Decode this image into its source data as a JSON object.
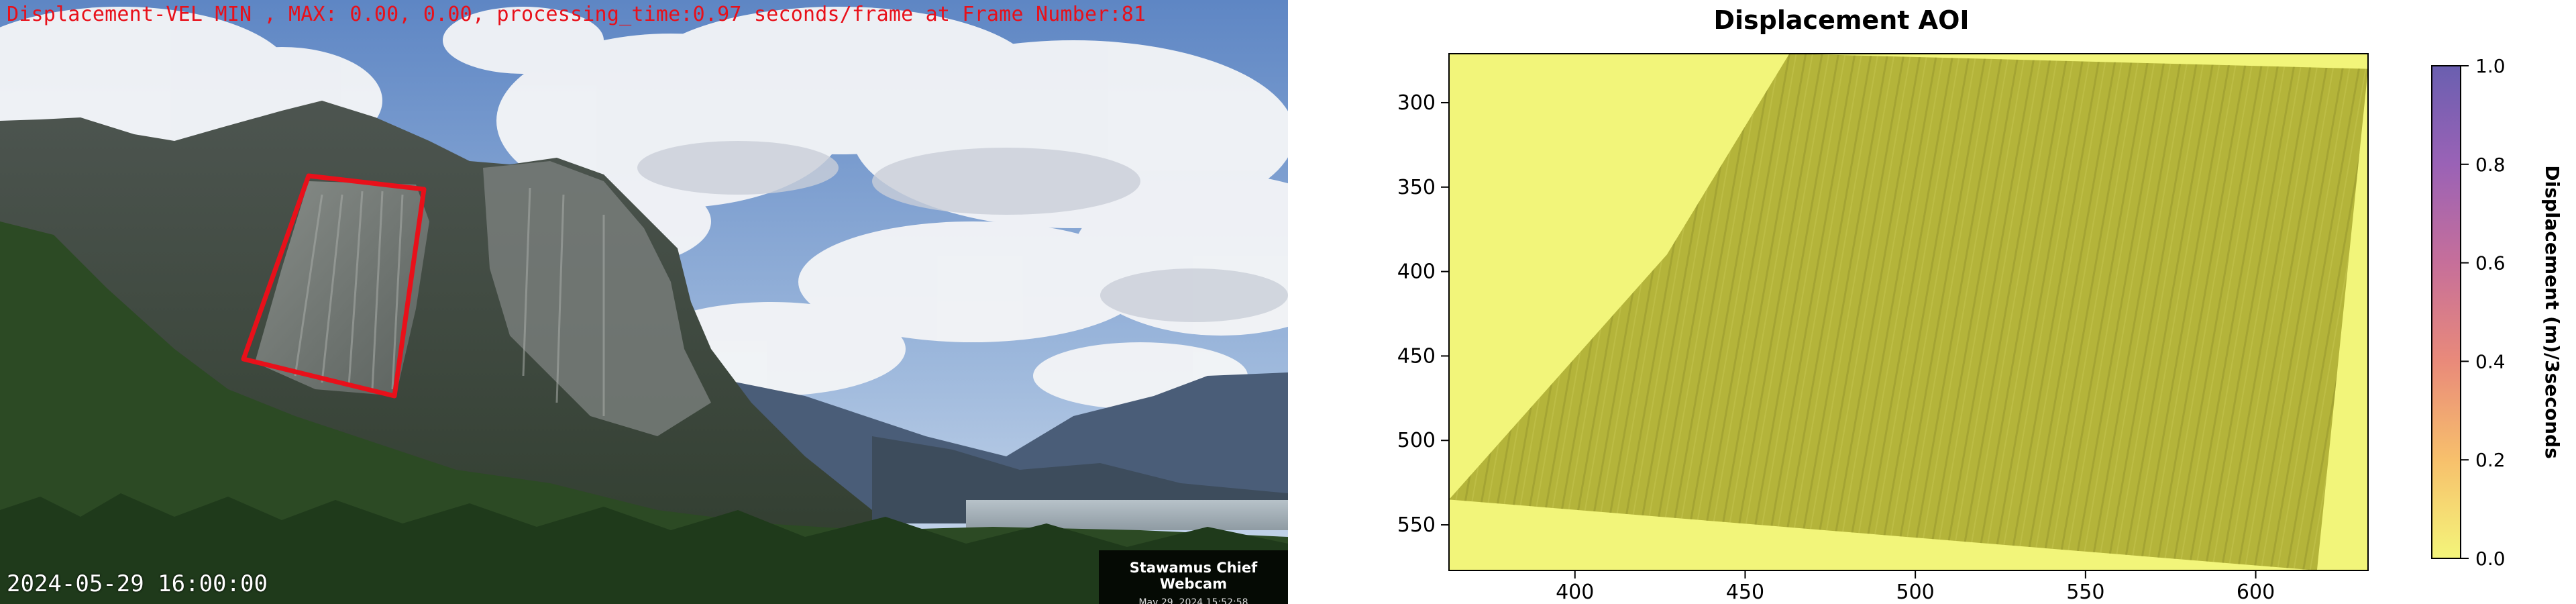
{
  "webcam": {
    "header_text": "Displacement-VEL MIN , MAX: 0.00, 0.00, processing_time:0.97 seconds/frame at Frame Number:81",
    "timestamp": "2024-05-29 16:00:00",
    "label_name": "Stawamus Chief Webcam",
    "label_date": "May 29, 2024 15:52:58",
    "aoi_color": "#e8101a"
  },
  "chart_data": {
    "type": "heatmap",
    "title": "Displacement AOI",
    "xlabel": "",
    "ylabel": "",
    "xlim": [
      363,
      633
    ],
    "ylim": [
      577,
      271
    ],
    "x_ticks": [
      400,
      450,
      500,
      550,
      600
    ],
    "y_ticks": [
      300,
      350,
      400,
      450,
      500,
      550
    ],
    "aoi_polygon": [
      [
        463,
        271
      ],
      [
        633,
        280
      ],
      [
        618,
        577
      ],
      [
        363,
        535
      ],
      [
        427,
        390
      ]
    ],
    "displacement_min": 0.0,
    "displacement_max": 0.0,
    "colorbar": {
      "label": "Displacement (m)/3seconds",
      "range": [
        0.0,
        1.0
      ],
      "ticks": [
        0.0,
        0.2,
        0.4,
        0.6,
        0.8,
        1.0
      ],
      "colors": [
        "#f4f57a",
        "#f7c06c",
        "#e98a7a",
        "#c66f9a",
        "#9a62b6",
        "#6a5fb0"
      ]
    },
    "background_color": "#f2f57a",
    "aoi_fill_color": "#b4b43a"
  }
}
